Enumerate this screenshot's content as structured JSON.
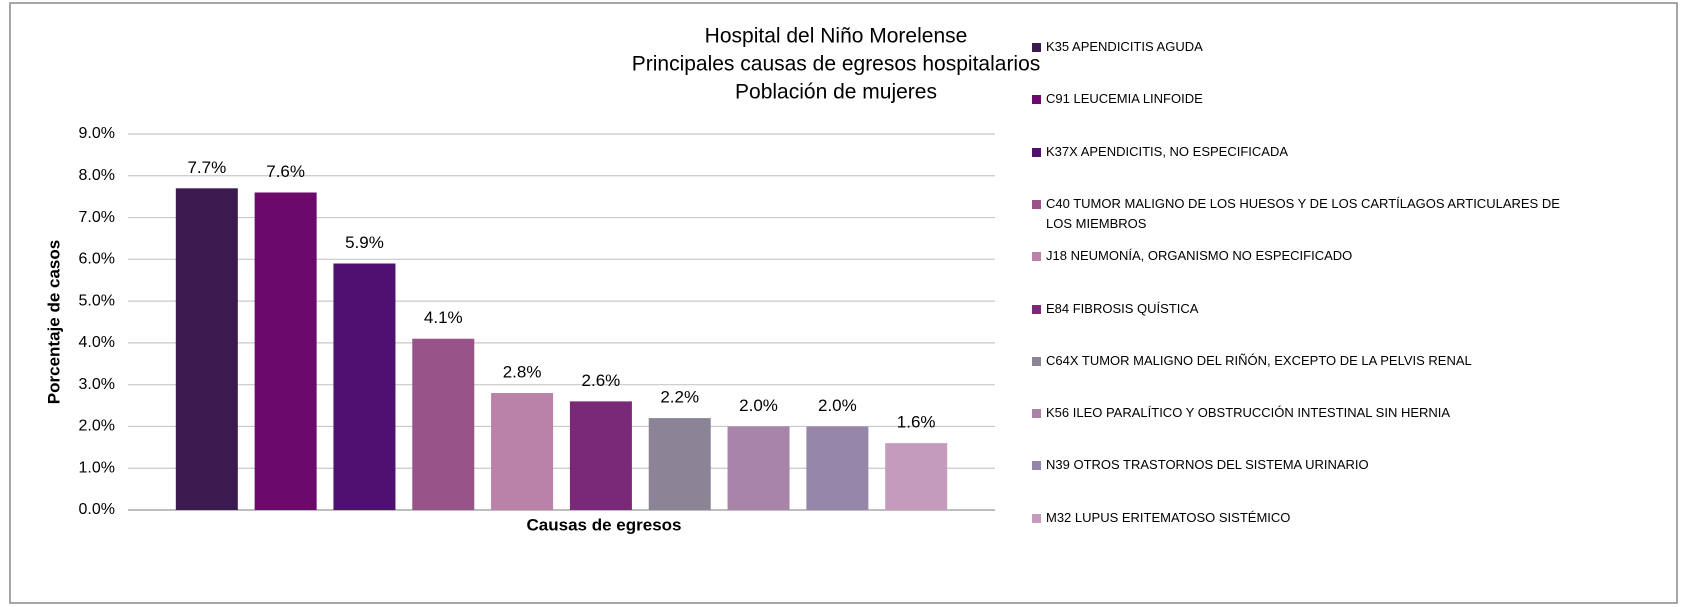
{
  "chart_data": {
    "type": "bar",
    "title": [
      "Hospital del Niño Morelense",
      "Principales causas de egresos hospitalarios",
      "Población de mujeres"
    ],
    "x_label": "Causas de egresos",
    "y_label": "Porcentaje de casos",
    "ylim": [
      0,
      9
    ],
    "yticks": [
      {
        "value": 0,
        "label": "0.0%"
      },
      {
        "value": 1,
        "label": "1.0%"
      },
      {
        "value": 2,
        "label": "2.0%"
      },
      {
        "value": 3,
        "label": "3.0%"
      },
      {
        "value": 4,
        "label": "4.0%"
      },
      {
        "value": 5,
        "label": "5.0%"
      },
      {
        "value": 6,
        "label": "6.0%"
      },
      {
        "value": 7,
        "label": "7.0%"
      },
      {
        "value": 8,
        "label": "8.0%"
      },
      {
        "value": 9,
        "label": "9.0%"
      }
    ],
    "grid": true,
    "legend": "right",
    "series": [
      {
        "name": "K35 APENDICITIS AGUDA",
        "color": "#3b1a4f",
        "values": [
          7.7
        ],
        "value_labels": [
          "7.7%"
        ]
      },
      {
        "name": "C91 LEUCEMIA LINFOIDE",
        "color": "#6b0a6b",
        "values": [
          7.6
        ],
        "value_labels": [
          "7.6%"
        ]
      },
      {
        "name": "K37X APENDICITIS, NO ESPECIFICADA",
        "color": "#4f1070",
        "values": [
          5.9
        ],
        "value_labels": [
          "5.9%"
        ]
      },
      {
        "name": "C40 TUMOR MALIGNO DE LOS HUESOS Y DE LOS CARTÍLAGOS ARTICULARES DE LOS MIEMBROS",
        "color": "#985488",
        "values": [
          4.1
        ],
        "value_labels": [
          "4.1%"
        ]
      },
      {
        "name": "J18 NEUMONÍA, ORGANISMO NO ESPECIFICADO",
        "color": "#ba82a8",
        "values": [
          2.8
        ],
        "value_labels": [
          "2.8%"
        ]
      },
      {
        "name": "E84 FIBROSIS QUÍSTICA",
        "color": "#7a2878",
        "values": [
          2.6
        ],
        "value_labels": [
          "2.6%"
        ]
      },
      {
        "name": "C64X TUMOR MALIGNO DEL RIÑÓN, EXCEPTO DE LA PELVIS RENAL",
        "color": "#8a8496",
        "values": [
          2.2
        ],
        "value_labels": [
          "2.2%"
        ]
      },
      {
        "name": "K56 ILEO PARALÍTICO Y OBSTRUCCIÓN INTESTINAL SIN HERNIA",
        "color": "#a884a8",
        "values": [
          2.0
        ],
        "value_labels": [
          "2.0%"
        ]
      },
      {
        "name": "N39 OTROS TRASTORNOS DEL SISTEMA URINARIO",
        "color": "#9686aa",
        "values": [
          2.0
        ],
        "value_labels": [
          "2.0%"
        ]
      },
      {
        "name": "M32 LUPUS ERITEMATOSO SISTÉMICO",
        "color": "#c59bbd",
        "values": [
          1.6
        ],
        "value_labels": [
          "1.6%"
        ]
      }
    ]
  }
}
